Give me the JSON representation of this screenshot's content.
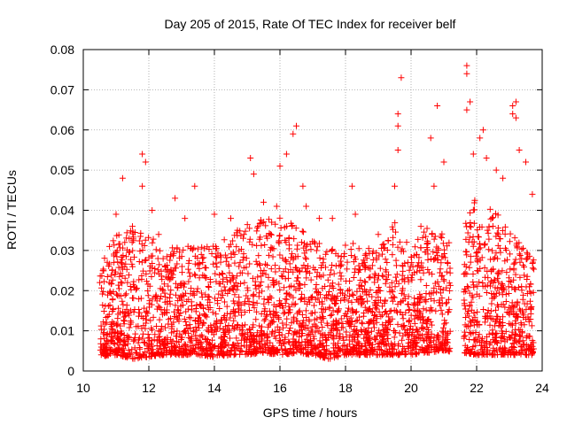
{
  "chart_data": {
    "type": "scatter",
    "title": "Day 205 of 2015, Rate Of TEC Index for receiver belf",
    "xlabel": "GPS time / hours",
    "ylabel": "ROTI / TECUs",
    "xlim": [
      10,
      24
    ],
    "ylim": [
      0,
      0.08
    ],
    "x_ticks": [
      10,
      12,
      14,
      16,
      18,
      20,
      22,
      24
    ],
    "x_tick_labels": [
      "10",
      "12",
      "14",
      "16",
      "18",
      "20",
      "22",
      "24"
    ],
    "y_ticks": [
      0,
      0.01,
      0.02,
      0.03,
      0.04,
      0.05,
      0.06,
      0.07,
      0.08
    ],
    "y_tick_labels": [
      "0",
      "0.01",
      "0.02",
      "0.03",
      "0.04",
      "0.05",
      "0.06",
      "0.07",
      "0.08"
    ],
    "grid": true,
    "marker": "+",
    "marker_color": "#ff0000",
    "series": [
      {
        "name": "ROTI",
        "color": "#ff0000",
        "x_range": [
          10.5,
          23.75
        ],
        "data_gap": [
          21.2,
          21.6
        ],
        "points": [
          [
            10.6,
            0.025
          ],
          [
            10.8,
            0.031
          ],
          [
            11.0,
            0.039
          ],
          [
            11.2,
            0.048
          ],
          [
            11.4,
            0.033
          ],
          [
            11.5,
            0.036
          ],
          [
            11.8,
            0.054
          ],
          [
            11.8,
            0.046
          ],
          [
            11.9,
            0.052
          ],
          [
            12.1,
            0.04
          ],
          [
            12.3,
            0.034
          ],
          [
            12.8,
            0.043
          ],
          [
            13.1,
            0.038
          ],
          [
            13.4,
            0.046
          ],
          [
            13.6,
            0.029
          ],
          [
            14.0,
            0.039
          ],
          [
            14.5,
            0.038
          ],
          [
            14.9,
            0.034
          ],
          [
            15.1,
            0.053
          ],
          [
            15.2,
            0.049
          ],
          [
            15.5,
            0.042
          ],
          [
            15.9,
            0.041
          ],
          [
            16.0,
            0.051
          ],
          [
            16.2,
            0.054
          ],
          [
            16.4,
            0.059
          ],
          [
            16.5,
            0.061
          ],
          [
            16.7,
            0.046
          ],
          [
            16.8,
            0.041
          ],
          [
            17.2,
            0.038
          ],
          [
            17.6,
            0.038
          ],
          [
            18.2,
            0.046
          ],
          [
            18.3,
            0.039
          ],
          [
            19.0,
            0.034
          ],
          [
            19.5,
            0.046
          ],
          [
            19.6,
            0.055
          ],
          [
            19.6,
            0.061
          ],
          [
            19.6,
            0.064
          ],
          [
            19.7,
            0.073
          ],
          [
            20.3,
            0.036
          ],
          [
            20.6,
            0.058
          ],
          [
            20.7,
            0.046
          ],
          [
            20.8,
            0.066
          ],
          [
            21.0,
            0.052
          ],
          [
            21.7,
            0.076
          ],
          [
            21.7,
            0.074
          ],
          [
            21.7,
            0.065
          ],
          [
            21.8,
            0.067
          ],
          [
            21.9,
            0.054
          ],
          [
            22.1,
            0.058
          ],
          [
            22.2,
            0.06
          ],
          [
            22.3,
            0.053
          ],
          [
            22.6,
            0.05
          ],
          [
            22.8,
            0.048
          ],
          [
            23.1,
            0.066
          ],
          [
            23.1,
            0.064
          ],
          [
            23.2,
            0.067
          ],
          [
            23.2,
            0.063
          ],
          [
            23.3,
            0.055
          ],
          [
            23.5,
            0.052
          ],
          [
            23.7,
            0.044
          ]
        ],
        "envelope": [
          [
            10.5,
            0.0035,
            0.026
          ],
          [
            11.0,
            0.004,
            0.034
          ],
          [
            11.5,
            0.003,
            0.036
          ],
          [
            12.0,
            0.0035,
            0.034
          ],
          [
            12.5,
            0.004,
            0.031
          ],
          [
            13.0,
            0.004,
            0.031
          ],
          [
            13.5,
            0.004,
            0.032
          ],
          [
            14.0,
            0.0035,
            0.031
          ],
          [
            14.5,
            0.004,
            0.034
          ],
          [
            15.0,
            0.004,
            0.037
          ],
          [
            15.5,
            0.0045,
            0.039
          ],
          [
            16.0,
            0.004,
            0.039
          ],
          [
            16.5,
            0.0045,
            0.036
          ],
          [
            17.0,
            0.004,
            0.033
          ],
          [
            17.5,
            0.003,
            0.03
          ],
          [
            18.0,
            0.004,
            0.033
          ],
          [
            18.5,
            0.004,
            0.031
          ],
          [
            19.0,
            0.004,
            0.03
          ],
          [
            19.5,
            0.004,
            0.037
          ],
          [
            20.0,
            0.004,
            0.031
          ],
          [
            20.5,
            0.0045,
            0.036
          ],
          [
            21.0,
            0.005,
            0.034
          ],
          [
            21.6,
            0.0045,
            0.036
          ],
          [
            22.0,
            0.004,
            0.044
          ],
          [
            22.5,
            0.004,
            0.041
          ],
          [
            23.0,
            0.004,
            0.036
          ],
          [
            23.5,
            0.004,
            0.03
          ],
          [
            23.75,
            0.004,
            0.028
          ]
        ]
      }
    ]
  }
}
